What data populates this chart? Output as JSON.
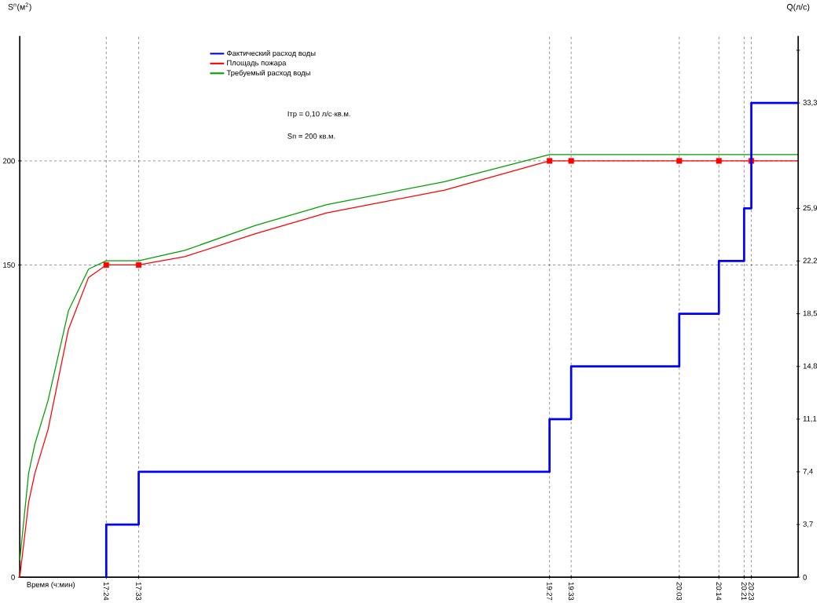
{
  "chart_data": {
    "type": "line",
    "xlabel": "Время (ч:мин)",
    "ylabel": "S$^{п}$(м$^{2}$)",
    "y2label": "Q(л/с)",
    "xlim": [
      17.0,
      20.6
    ],
    "xticks": [
      {
        "value": 17.4,
        "label": "17:24"
      },
      {
        "value": 17.55,
        "label": "17:33"
      },
      {
        "value": 19.45,
        "label": "19:27"
      },
      {
        "value": 19.55,
        "label": "19:33"
      },
      {
        "value": 20.05,
        "label": "20:03"
      },
      {
        "value": 20.2333,
        "label": "20:14"
      },
      {
        "value": 20.35,
        "label": "20:21"
      },
      {
        "value": 20.3833,
        "label": "20:23"
      }
    ],
    "ylim": [
      0,
      260
    ],
    "yticks": [
      0,
      150,
      200
    ],
    "y2lim": [
      0,
      38
    ],
    "y2ticks": [
      0,
      {
        "value": 3.7,
        "label": "3,7"
      },
      {
        "value": 7.4,
        "label": "7,4"
      },
      {
        "value": 11.1,
        "label": "11,1"
      },
      {
        "value": 14.8,
        "label": "14,8"
      },
      {
        "value": 18.5,
        "label": "18,5"
      },
      {
        "value": 22.2,
        "label": "22,2"
      },
      {
        "value": 25.9,
        "label": "25,9"
      },
      {
        "value": 33.3,
        "label": "33,3"
      },
      {
        "value": 37,
        "label": null
      }
    ],
    "series": [
      {
        "name": "Фактический расход воды",
        "type": "step",
        "axis": "y2",
        "color": "#0000ff",
        "x": [
          17.4,
          17.4,
          17.55,
          19.45,
          19.55,
          20.05,
          20.2333,
          20.35,
          20.3833,
          20.6
        ],
        "values": [
          0,
          3.7,
          7.4,
          11.1,
          14.8,
          18.5,
          22.2,
          25.9,
          33.3,
          33.3
        ]
      },
      {
        "name": "Площадь пожара",
        "color": "#ff0000",
        "x": [
          17.0,
          17.041,
          17.07,
          17.131,
          17.225,
          17.318,
          17.4,
          17.55,
          17.763,
          18.09,
          18.42,
          18.965,
          19.45,
          20.6
        ],
        "values": [
          0,
          36,
          50,
          71,
          119,
          144,
          150,
          150,
          154,
          165,
          175,
          186,
          200,
          200
        ]
      },
      {
        "name": "Требуемый расход воды",
        "color": "#00a000",
        "x": [
          17.0,
          17.041,
          17.07,
          17.131,
          17.225,
          17.318,
          17.4,
          17.55,
          17.763,
          18.09,
          18.42,
          18.965,
          19.45,
          20.6
        ],
        "values": [
          8,
          50,
          64,
          85,
          128,
          148,
          152,
          152,
          157,
          169,
          179,
          190,
          203,
          203
        ]
      },
      {
        "type": "scatter",
        "marker": "square",
        "color": "#ff0000",
        "x": [
          17.4,
          17.55,
          19.45,
          19.55,
          20.05,
          20.2333,
          20.3833
        ],
        "values": [
          150,
          150,
          200,
          200,
          200,
          200,
          200
        ]
      }
    ],
    "ref_lines": [
      {
        "axis": "x",
        "value": 17.4,
        "line_style": "dashed"
      },
      {
        "axis": "x",
        "value": 17.55,
        "line_style": "dashed"
      },
      {
        "axis": "x",
        "value": 19.45,
        "line_style": "dashed"
      },
      {
        "axis": "x",
        "value": 19.55,
        "line_style": "dashed"
      },
      {
        "axis": "x",
        "value": 20.05,
        "line_style": "dashed"
      },
      {
        "axis": "x",
        "value": 20.2333,
        "line_style": "dashed"
      },
      {
        "axis": "x",
        "value": 20.35,
        "line_style": "dashed"
      },
      {
        "axis": "x",
        "value": 20.3833,
        "line_style": "dashed"
      },
      {
        "axis": "y",
        "value": 150,
        "line_style": "dashed"
      },
      {
        "axis": "y",
        "value": 200,
        "line_style": "dashed"
      }
    ],
    "annotations": [
      "Iтр = 0,10  л/с·кв.м.",
      "Sп =  200 кв.м."
    ],
    "legend": "top left"
  }
}
